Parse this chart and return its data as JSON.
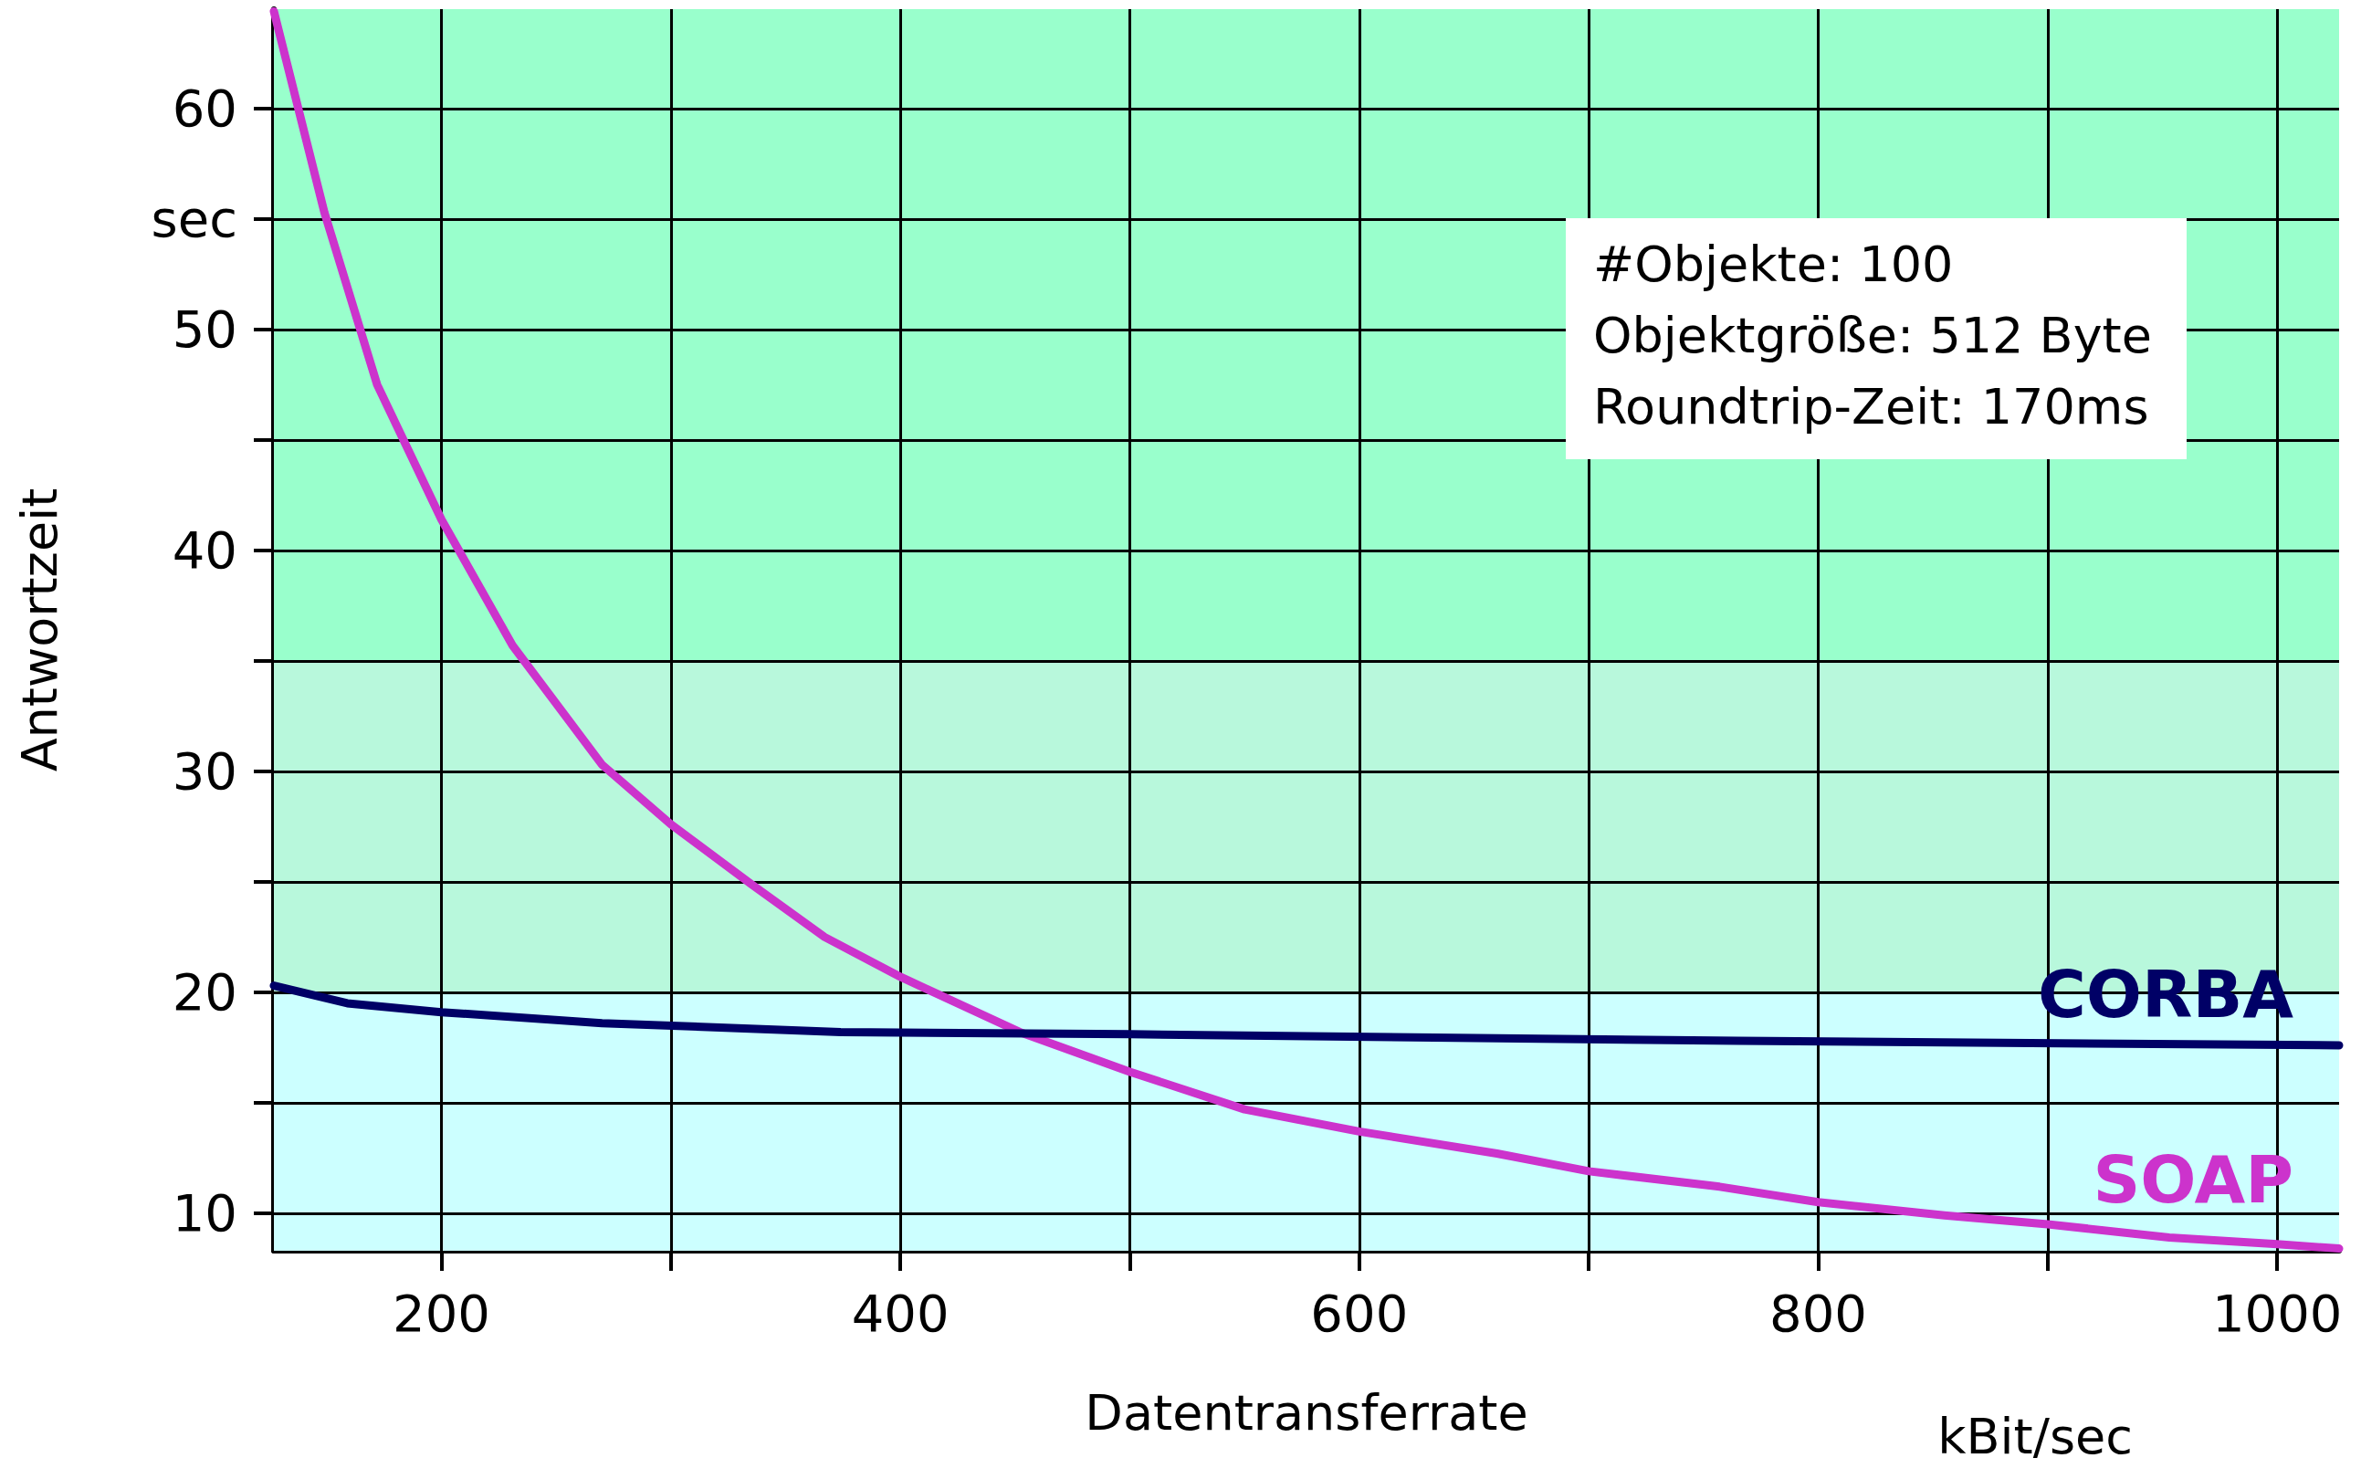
{
  "chart_data": {
    "type": "line",
    "xlabel": "Datentransferrate",
    "ylabel": "Antwortzeit",
    "annotations": [
      "kBit/sec",
      "#Objekte: 100",
      "Objektgröße: 512 Byte",
      "Roundtrip-Zeit: 170ms"
    ],
    "series": [
      {
        "name": "SOAP",
        "color": "#cc33cc",
        "x": [
          127,
          149,
          172,
          200,
          231,
          270,
          300,
          335,
          367,
          400,
          452,
          500,
          550,
          600,
          660,
          700,
          757,
          800,
          855,
          900,
          953,
          1000,
          1027
        ],
        "values": [
          64.4,
          55.3,
          47.5,
          41.4,
          35.7,
          30.3,
          27.6,
          24.9,
          22.5,
          20.7,
          18.2,
          16.4,
          14.7,
          13.7,
          12.7,
          11.9,
          11.2,
          10.5,
          9.9,
          9.5,
          8.9,
          8.6,
          8.4
        ]
      },
      {
        "name": "CORBA",
        "color": "#000066",
        "x": [
          127,
          159,
          200,
          270,
          374,
          500,
          765,
          1027
        ],
        "values": [
          20.3,
          19.5,
          19.1,
          18.6,
          18.2,
          18.1,
          17.8,
          17.6
        ]
      }
    ],
    "xlim": [
      127,
      1027
    ],
    "xticks": [
      {
        "value": 200,
        "label": "200"
      },
      {
        "value": 300,
        "label": null
      },
      {
        "value": 400,
        "label": "400"
      },
      {
        "value": 500,
        "label": null
      },
      {
        "value": 600,
        "label": "600"
      },
      {
        "value": 700,
        "label": null
      },
      {
        "value": 800,
        "label": "800"
      },
      {
        "value": 900,
        "label": null
      },
      {
        "value": 1000,
        "label": "1000"
      }
    ],
    "ylim": [
      8.3,
      64.5
    ],
    "yticks": [
      10,
      {
        "value": 15,
        "label": null
      },
      20,
      {
        "value": 25,
        "label": null
      },
      30,
      {
        "value": 35,
        "label": null
      },
      40,
      {
        "value": 45,
        "label": null
      },
      50,
      {
        "value": 55,
        "label": "sec"
      },
      60
    ],
    "bands": [
      {
        "axis": "y",
        "from": 35,
        "to": 64.5,
        "label": null,
        "color": "#99ffcc"
      },
      {
        "axis": "y",
        "from": 20,
        "to": 35,
        "label": null,
        "color": "#b8f8dc"
      },
      {
        "axis": "y",
        "from": 8.3,
        "to": 20,
        "label": null,
        "color": "#ccffff"
      }
    ],
    "grid": true,
    "marker": "none",
    "line_style": "solid",
    "legend": false
  }
}
